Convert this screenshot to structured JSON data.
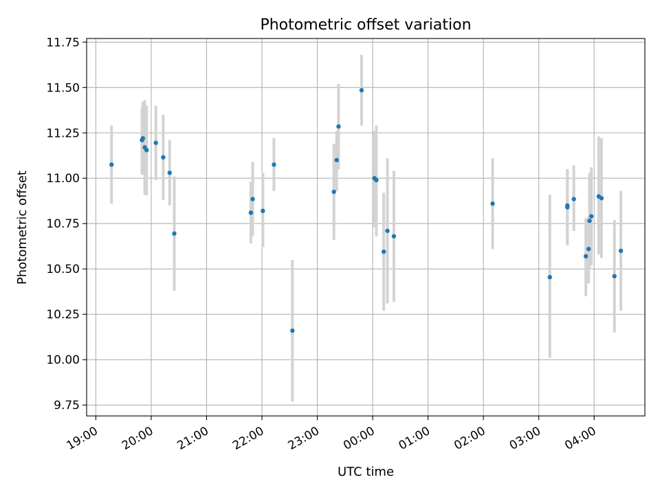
{
  "chart_data": {
    "type": "scatter",
    "title": "Photometric offset variation",
    "xlabel": "UTC time",
    "ylabel": "Photometric offset",
    "x_axis": {
      "kind": "time",
      "domain_start": "2024-01-01 18:50",
      "domain_end": "2024-01-02 04:55",
      "ticks": [
        {
          "t": "2024-01-01 19:00",
          "label": "19:00"
        },
        {
          "t": "2024-01-01 20:00",
          "label": "20:00"
        },
        {
          "t": "2024-01-01 21:00",
          "label": "21:00"
        },
        {
          "t": "2024-01-01 22:00",
          "label": "22:00"
        },
        {
          "t": "2024-01-01 23:00",
          "label": "23:00"
        },
        {
          "t": "2024-01-02 00:00",
          "label": "00:00"
        },
        {
          "t": "2024-01-02 01:00",
          "label": "01:00"
        },
        {
          "t": "2024-01-02 02:00",
          "label": "02:00"
        },
        {
          "t": "2024-01-02 03:00",
          "label": "03:00"
        },
        {
          "t": "2024-01-02 04:00",
          "label": "04:00"
        }
      ]
    },
    "y_axis": {
      "ylim": [
        9.69,
        11.77
      ],
      "ticks": [
        {
          "v": 9.75,
          "label": "9.75"
        },
        {
          "v": 10.0,
          "label": "10.00"
        },
        {
          "v": 10.25,
          "label": "10.25"
        },
        {
          "v": 10.5,
          "label": "10.50"
        },
        {
          "v": 10.75,
          "label": "10.75"
        },
        {
          "v": 11.0,
          "label": "11.00"
        },
        {
          "v": 11.25,
          "label": "11.25"
        },
        {
          "v": 11.5,
          "label": "11.50"
        },
        {
          "v": 11.75,
          "label": "11.75"
        }
      ]
    },
    "grid": true,
    "colors": {
      "point": "#1f77b4",
      "errorbar": "#d3d3d3",
      "grid": "#b0b0b0",
      "axes": "#000000"
    },
    "points": [
      {
        "t": "2024-01-01 19:17",
        "y": 11.075,
        "lo": 10.86,
        "hi": 11.29
      },
      {
        "t": "2024-01-01 19:50",
        "y": 11.21,
        "lo": 11.02,
        "hi": 11.39
      },
      {
        "t": "2024-01-01 19:51",
        "y": 11.22,
        "lo": 11.03,
        "hi": 11.42
      },
      {
        "t": "2024-01-01 19:53",
        "y": 11.17,
        "lo": 10.91,
        "hi": 11.43
      },
      {
        "t": "2024-01-01 19:55",
        "y": 11.155,
        "lo": 10.905,
        "hi": 11.4
      },
      {
        "t": "2024-01-01 20:05",
        "y": 11.195,
        "lo": 10.99,
        "hi": 11.4
      },
      {
        "t": "2024-01-01 20:13",
        "y": 11.115,
        "lo": 10.88,
        "hi": 11.35
      },
      {
        "t": "2024-01-01 20:20",
        "y": 11.03,
        "lo": 10.85,
        "hi": 11.21
      },
      {
        "t": "2024-01-01 20:25",
        "y": 10.695,
        "lo": 10.38,
        "hi": 11.01
      },
      {
        "t": "2024-01-01 21:48",
        "y": 10.81,
        "lo": 10.64,
        "hi": 10.98
      },
      {
        "t": "2024-01-01 21:50",
        "y": 10.885,
        "lo": 10.68,
        "hi": 11.09
      },
      {
        "t": "2024-01-01 22:01",
        "y": 10.82,
        "lo": 10.62,
        "hi": 11.03
      },
      {
        "t": "2024-01-01 22:13",
        "y": 11.075,
        "lo": 10.93,
        "hi": 11.22
      },
      {
        "t": "2024-01-01 22:33",
        "y": 10.16,
        "lo": 9.77,
        "hi": 10.55
      },
      {
        "t": "2024-01-01 23:18",
        "y": 10.925,
        "lo": 10.66,
        "hi": 11.19
      },
      {
        "t": "2024-01-01 23:21",
        "y": 11.1,
        "lo": 10.93,
        "hi": 11.26
      },
      {
        "t": "2024-01-01 23:23",
        "y": 11.285,
        "lo": 11.05,
        "hi": 11.52
      },
      {
        "t": "2024-01-01 23:48",
        "y": 11.485,
        "lo": 11.29,
        "hi": 11.68
      },
      {
        "t": "2024-01-02 00:02",
        "y": 11.0,
        "lo": 10.73,
        "hi": 11.26
      },
      {
        "t": "2024-01-02 00:04",
        "y": 10.99,
        "lo": 10.68,
        "hi": 11.29
      },
      {
        "t": "2024-01-02 00:12",
        "y": 10.595,
        "lo": 10.27,
        "hi": 10.92
      },
      {
        "t": "2024-01-02 00:16",
        "y": 10.71,
        "lo": 10.31,
        "hi": 11.11
      },
      {
        "t": "2024-01-02 00:23",
        "y": 10.68,
        "lo": 10.32,
        "hi": 11.04
      },
      {
        "t": "2024-01-02 02:10",
        "y": 10.86,
        "lo": 10.61,
        "hi": 11.11
      },
      {
        "t": "2024-01-02 03:12",
        "y": 10.455,
        "lo": 10.01,
        "hi": 10.91
      },
      {
        "t": "2024-01-02 03:31",
        "y": 10.84,
        "lo": 10.63,
        "hi": 11.05
      },
      {
        "t": "2024-01-02 03:31",
        "y": 10.85,
        "lo": 10.64,
        "hi": 11.05
      },
      {
        "t": "2024-01-02 03:38",
        "y": 10.885,
        "lo": 10.71,
        "hi": 11.07
      },
      {
        "t": "2024-01-02 03:51",
        "y": 10.57,
        "lo": 10.35,
        "hi": 10.78
      },
      {
        "t": "2024-01-02 03:54",
        "y": 10.61,
        "lo": 10.42,
        "hi": 10.79
      },
      {
        "t": "2024-01-02 03:55",
        "y": 10.765,
        "lo": 10.5,
        "hi": 11.03
      },
      {
        "t": "2024-01-02 03:57",
        "y": 10.79,
        "lo": 10.52,
        "hi": 11.06
      },
      {
        "t": "2024-01-02 04:05",
        "y": 10.9,
        "lo": 10.58,
        "hi": 11.23
      },
      {
        "t": "2024-01-02 04:08",
        "y": 10.89,
        "lo": 10.56,
        "hi": 11.22
      },
      {
        "t": "2024-01-02 04:22",
        "y": 10.46,
        "lo": 10.15,
        "hi": 10.77
      },
      {
        "t": "2024-01-02 04:29",
        "y": 10.6,
        "lo": 10.27,
        "hi": 10.93
      }
    ]
  }
}
